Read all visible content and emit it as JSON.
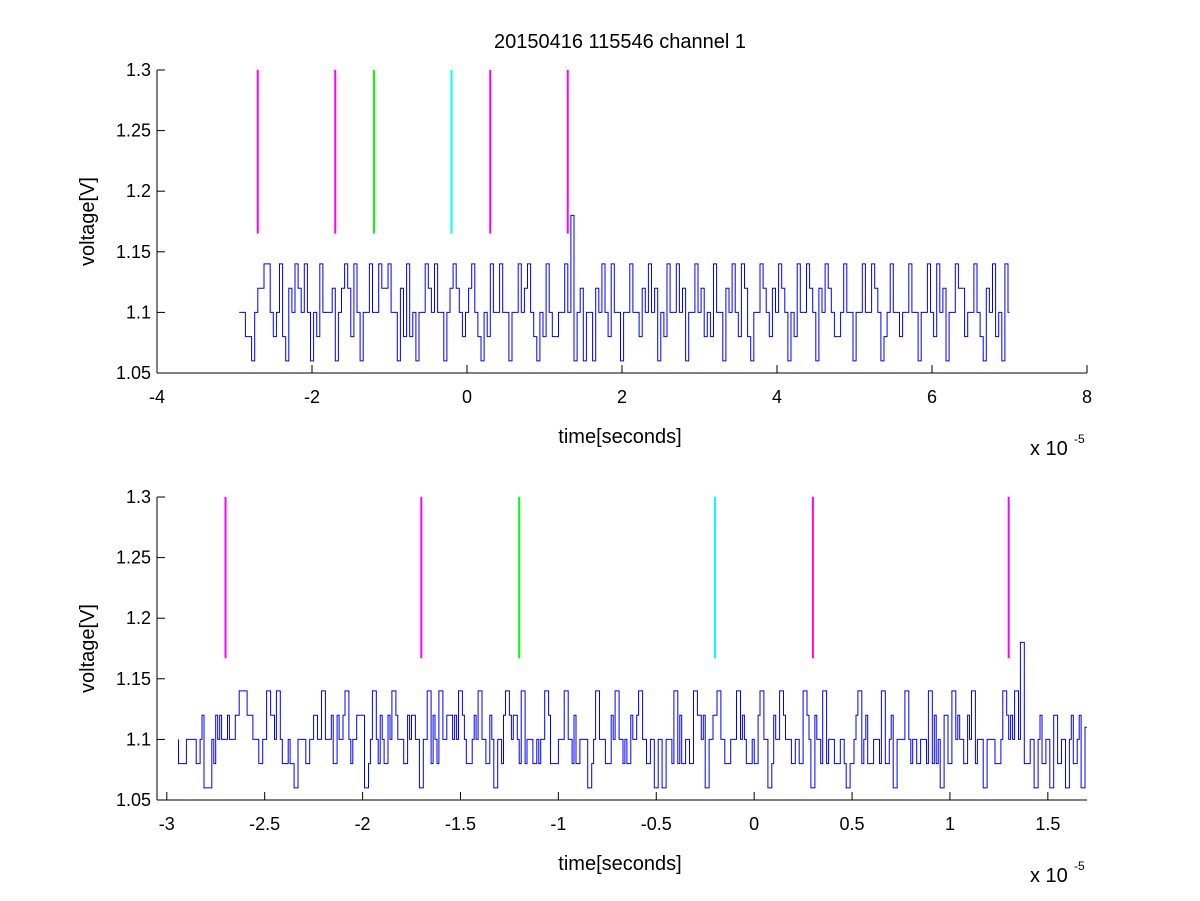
{
  "figure": {
    "title": "20150416 115546 channel 1"
  },
  "chart_data": [
    {
      "type": "line",
      "title": "20150416 115546 channel 1",
      "xlabel": "time[seconds]",
      "ylabel": "voltage[V]",
      "x_multiplier_label": "x 10",
      "x_multiplier_exponent": "-5",
      "xlim": [
        -4,
        8
      ],
      "ylim": [
        1.05,
        1.3
      ],
      "xticks": [
        -4,
        -2,
        0,
        2,
        4,
        6,
        8
      ],
      "xtick_labels": [
        "-4",
        "-2",
        "0",
        "2",
        "4",
        "6",
        "8"
      ],
      "yticks": [
        1.05,
        1.1,
        1.15,
        1.2,
        1.25,
        1.3
      ],
      "ytick_labels": [
        "1.05",
        "1.1",
        "1.15",
        "1.2",
        "1.25",
        "1.3"
      ],
      "grid": false,
      "markers": [
        {
          "x": -2.7,
          "y0": 1.165,
          "y1": 1.3,
          "color": "#ff00ff"
        },
        {
          "x": -1.7,
          "y0": 1.165,
          "y1": 1.3,
          "color": "#ff00ff"
        },
        {
          "x": -1.2,
          "y0": 1.165,
          "y1": 1.3,
          "color": "#00ff00"
        },
        {
          "x": -0.2,
          "y0": 1.165,
          "y1": 1.3,
          "color": "#00ffff"
        },
        {
          "x": 0.3,
          "y0": 1.165,
          "y1": 1.3,
          "color": "#ff00ff"
        },
        {
          "x": 1.3,
          "y0": 1.165,
          "y1": 1.3,
          "color": "#ff00ff"
        }
      ],
      "series": [
        {
          "color": "#0000ff",
          "x_start": -2.94,
          "x_step": 0.04,
          "baseline": 1.1,
          "spikes": [
            {
              "x": -2.82,
              "y": 1.08
            },
            {
              "x": -2.78,
              "y": 1.06
            },
            {
              "x": -2.62,
              "y": 1.12
            },
            {
              "x": -2.58,
              "y": 1.14
            },
            {
              "x": -2.54,
              "y": 1.14
            },
            {
              "x": -2.46,
              "y": 1.08
            },
            {
              "x": -2.38,
              "y": 1.14
            },
            {
              "x": -2.3,
              "y": 1.06
            },
            {
              "x": -2.18,
              "y": 1.14
            },
            {
              "x": -2.06,
              "y": 1.14
            },
            {
              "x": -1.98,
              "y": 1.06
            },
            {
              "x": -1.86,
              "y": 1.14
            },
            {
              "x": -1.72,
              "y": 1.12
            },
            {
              "x": -1.66,
              "y": 1.06
            },
            {
              "x": -1.54,
              "y": 1.14
            },
            {
              "x": -1.42,
              "y": 1.14
            },
            {
              "x": -1.34,
              "y": 1.06
            },
            {
              "x": -1.22,
              "y": 1.14
            },
            {
              "x": -1.1,
              "y": 1.14
            },
            {
              "x": -0.98,
              "y": 1.14
            },
            {
              "x": -0.86,
              "y": 1.06
            },
            {
              "x": -0.74,
              "y": 1.14
            },
            {
              "x": -0.62,
              "y": 1.06
            },
            {
              "x": -0.5,
              "y": 1.14
            },
            {
              "x": -0.38,
              "y": 1.14
            },
            {
              "x": -0.26,
              "y": 1.06
            },
            {
              "x": -0.14,
              "y": 1.14
            },
            {
              "x": -0.02,
              "y": 1.08
            },
            {
              "x": 0.1,
              "y": 1.14
            },
            {
              "x": 0.22,
              "y": 1.06
            },
            {
              "x": 0.34,
              "y": 1.14
            },
            {
              "x": 0.46,
              "y": 1.14
            },
            {
              "x": 0.58,
              "y": 1.06
            },
            {
              "x": 0.7,
              "y": 1.14
            },
            {
              "x": 0.82,
              "y": 1.14
            },
            {
              "x": 0.94,
              "y": 1.06
            },
            {
              "x": 1.06,
              "y": 1.14
            },
            {
              "x": 1.18,
              "y": 1.08
            },
            {
              "x": 1.3,
              "y": 1.14
            },
            {
              "x": 1.36,
              "y": 1.18
            },
            {
              "x": 1.42,
              "y": 1.06
            },
            {
              "x": 1.54,
              "y": 1.06
            },
            {
              "x": 1.66,
              "y": 1.06
            },
            {
              "x": 1.78,
              "y": 1.14
            },
            {
              "x": 1.9,
              "y": 1.14
            },
            {
              "x": 2.02,
              "y": 1.06
            },
            {
              "x": 2.14,
              "y": 1.14
            },
            {
              "x": 2.26,
              "y": 1.08
            },
            {
              "x": 2.38,
              "y": 1.14
            },
            {
              "x": 2.5,
              "y": 1.06
            },
            {
              "x": 2.62,
              "y": 1.14
            },
            {
              "x": 2.74,
              "y": 1.14
            },
            {
              "x": 2.86,
              "y": 1.06
            },
            {
              "x": 2.98,
              "y": 1.14
            },
            {
              "x": 3.1,
              "y": 1.08
            },
            {
              "x": 3.22,
              "y": 1.14
            },
            {
              "x": 3.34,
              "y": 1.06
            },
            {
              "x": 3.46,
              "y": 1.14
            },
            {
              "x": 3.58,
              "y": 1.14
            },
            {
              "x": 3.7,
              "y": 1.06
            },
            {
              "x": 3.82,
              "y": 1.14
            },
            {
              "x": 3.94,
              "y": 1.08
            },
            {
              "x": 4.06,
              "y": 1.14
            },
            {
              "x": 4.18,
              "y": 1.06
            },
            {
              "x": 4.3,
              "y": 1.14
            },
            {
              "x": 4.42,
              "y": 1.14
            },
            {
              "x": 4.54,
              "y": 1.06
            },
            {
              "x": 4.66,
              "y": 1.14
            },
            {
              "x": 4.78,
              "y": 1.08
            },
            {
              "x": 4.9,
              "y": 1.14
            },
            {
              "x": 5.02,
              "y": 1.06
            },
            {
              "x": 5.14,
              "y": 1.14
            },
            {
              "x": 5.26,
              "y": 1.14
            },
            {
              "x": 5.38,
              "y": 1.06
            },
            {
              "x": 5.5,
              "y": 1.14
            },
            {
              "x": 5.62,
              "y": 1.08
            },
            {
              "x": 5.74,
              "y": 1.14
            },
            {
              "x": 5.86,
              "y": 1.06
            },
            {
              "x": 5.98,
              "y": 1.14
            },
            {
              "x": 6.1,
              "y": 1.14
            },
            {
              "x": 6.22,
              "y": 1.06
            },
            {
              "x": 6.34,
              "y": 1.14
            },
            {
              "x": 6.46,
              "y": 1.08
            },
            {
              "x": 6.58,
              "y": 1.14
            },
            {
              "x": 6.7,
              "y": 1.06
            },
            {
              "x": 6.82,
              "y": 1.14
            },
            {
              "x": 6.94,
              "y": 1.06
            },
            {
              "x": 6.98,
              "y": 1.14
            }
          ],
          "x_end": 7.0
        }
      ]
    },
    {
      "type": "line",
      "title": "",
      "xlabel": "time[seconds]",
      "ylabel": "voltage[V]",
      "x_multiplier_label": "x 10",
      "x_multiplier_exponent": "-5",
      "xlim": [
        -3.05,
        1.7
      ],
      "ylim": [
        1.05,
        1.3
      ],
      "xticks": [
        -3,
        -2.5,
        -2,
        -1.5,
        -1,
        -0.5,
        0,
        0.5,
        1,
        1.5
      ],
      "xtick_labels": [
        "-3",
        "-2.5",
        "-2",
        "-1.5",
        "-1",
        "-0.5",
        "0",
        "0.5",
        "1",
        "1.5"
      ],
      "yticks": [
        1.05,
        1.1,
        1.15,
        1.2,
        1.25,
        1.3
      ],
      "ytick_labels": [
        "1.05",
        "1.1",
        "1.15",
        "1.2",
        "1.25",
        "1.3"
      ],
      "grid": false,
      "markers": [
        {
          "x": -2.7,
          "y0": 1.167,
          "y1": 1.3,
          "color": "#ff00ff"
        },
        {
          "x": -1.7,
          "y0": 1.167,
          "y1": 1.3,
          "color": "#ff00ff"
        },
        {
          "x": -1.2,
          "y0": 1.167,
          "y1": 1.3,
          "color": "#00ff00"
        },
        {
          "x": -0.2,
          "y0": 1.167,
          "y1": 1.3,
          "color": "#00ffff"
        },
        {
          "x": 0.3,
          "y0": 1.167,
          "y1": 1.3,
          "color": "#ff00ff"
        },
        {
          "x": 1.3,
          "y0": 1.167,
          "y1": 1.3,
          "color": "#ff00ff"
        }
      ],
      "series": [
        {
          "color": "#0000ff",
          "x_start": -2.94,
          "x_step": 0.01,
          "baseline": 1.1,
          "spikes": [
            {
              "x": -2.84,
              "y": 1.08
            },
            {
              "x": -2.8,
              "y": 1.06
            },
            {
              "x": -2.78,
              "y": 1.06
            },
            {
              "x": -2.64,
              "y": 1.12
            },
            {
              "x": -2.62,
              "y": 1.14
            },
            {
              "x": -2.6,
              "y": 1.14
            },
            {
              "x": -2.58,
              "y": 1.12
            },
            {
              "x": -2.52,
              "y": 1.08
            },
            {
              "x": -2.48,
              "y": 1.14
            },
            {
              "x": -2.46,
              "y": 1.12
            },
            {
              "x": -2.43,
              "y": 1.14
            },
            {
              "x": -2.4,
              "y": 1.08
            },
            {
              "x": -2.34,
              "y": 1.06
            },
            {
              "x": -2.28,
              "y": 1.08
            },
            {
              "x": -2.24,
              "y": 1.12
            },
            {
              "x": -2.2,
              "y": 1.14
            },
            {
              "x": -2.14,
              "y": 1.08
            },
            {
              "x": -2.08,
              "y": 1.14
            },
            {
              "x": -2.02,
              "y": 1.12
            },
            {
              "x": -1.98,
              "y": 1.06
            },
            {
              "x": -1.94,
              "y": 1.14
            },
            {
              "x": -1.88,
              "y": 1.08
            },
            {
              "x": -1.84,
              "y": 1.14
            },
            {
              "x": -1.78,
              "y": 1.08
            },
            {
              "x": -1.74,
              "y": 1.12
            },
            {
              "x": -1.7,
              "y": 1.06
            },
            {
              "x": -1.66,
              "y": 1.14
            },
            {
              "x": -1.6,
              "y": 1.14
            },
            {
              "x": -1.56,
              "y": 1.12
            },
            {
              "x": -1.5,
              "y": 1.14
            },
            {
              "x": -1.46,
              "y": 1.08
            },
            {
              "x": -1.4,
              "y": 1.14
            },
            {
              "x": -1.36,
              "y": 1.08
            },
            {
              "x": -1.32,
              "y": 1.06
            },
            {
              "x": -1.26,
              "y": 1.14
            },
            {
              "x": -1.22,
              "y": 1.12
            },
            {
              "x": -1.18,
              "y": 1.14
            },
            {
              "x": -1.12,
              "y": 1.08
            },
            {
              "x": -1.06,
              "y": 1.14
            },
            {
              "x": -1.02,
              "y": 1.08
            },
            {
              "x": -0.96,
              "y": 1.14
            },
            {
              "x": -0.9,
              "y": 1.08
            },
            {
              "x": -0.84,
              "y": 1.06
            },
            {
              "x": -0.8,
              "y": 1.14
            },
            {
              "x": -0.74,
              "y": 1.08
            },
            {
              "x": -0.7,
              "y": 1.14
            },
            {
              "x": -0.64,
              "y": 1.08
            },
            {
              "x": -0.58,
              "y": 1.14
            },
            {
              "x": -0.54,
              "y": 1.08
            },
            {
              "x": -0.5,
              "y": 1.06
            },
            {
              "x": -0.46,
              "y": 1.06
            },
            {
              "x": -0.4,
              "y": 1.14
            },
            {
              "x": -0.36,
              "y": 1.08
            },
            {
              "x": -0.3,
              "y": 1.14
            },
            {
              "x": -0.24,
              "y": 1.06
            },
            {
              "x": -0.18,
              "y": 1.14
            },
            {
              "x": -0.14,
              "y": 1.08
            },
            {
              "x": -0.08,
              "y": 1.14
            },
            {
              "x": -0.02,
              "y": 1.08
            },
            {
              "x": 0.04,
              "y": 1.14
            },
            {
              "x": 0.08,
              "y": 1.06
            },
            {
              "x": 0.14,
              "y": 1.14
            },
            {
              "x": 0.2,
              "y": 1.08
            },
            {
              "x": 0.26,
              "y": 1.14
            },
            {
              "x": 0.3,
              "y": 1.06
            },
            {
              "x": 0.36,
              "y": 1.14
            },
            {
              "x": 0.42,
              "y": 1.08
            },
            {
              "x": 0.48,
              "y": 1.06
            },
            {
              "x": 0.54,
              "y": 1.14
            },
            {
              "x": 0.6,
              "y": 1.08
            },
            {
              "x": 0.66,
              "y": 1.14
            },
            {
              "x": 0.72,
              "y": 1.06
            },
            {
              "x": 0.78,
              "y": 1.14
            },
            {
              "x": 0.84,
              "y": 1.08
            },
            {
              "x": 0.9,
              "y": 1.14
            },
            {
              "x": 0.96,
              "y": 1.06
            },
            {
              "x": 1.02,
              "y": 1.14
            },
            {
              "x": 1.08,
              "y": 1.08
            },
            {
              "x": 1.12,
              "y": 1.14
            },
            {
              "x": 1.18,
              "y": 1.06
            },
            {
              "x": 1.24,
              "y": 1.08
            },
            {
              "x": 1.28,
              "y": 1.14
            },
            {
              "x": 1.34,
              "y": 1.14
            },
            {
              "x": 1.37,
              "y": 1.18
            },
            {
              "x": 1.4,
              "y": 1.08
            },
            {
              "x": 1.44,
              "y": 1.06
            },
            {
              "x": 1.48,
              "y": 1.08
            },
            {
              "x": 1.52,
              "y": 1.06
            },
            {
              "x": 1.56,
              "y": 1.08
            },
            {
              "x": 1.6,
              "y": 1.06
            },
            {
              "x": 1.64,
              "y": 1.08
            },
            {
              "x": 1.68,
              "y": 1.06
            },
            {
              "x": 1.7,
              "y": 1.11
            }
          ],
          "x_end": 1.7
        }
      ]
    }
  ]
}
